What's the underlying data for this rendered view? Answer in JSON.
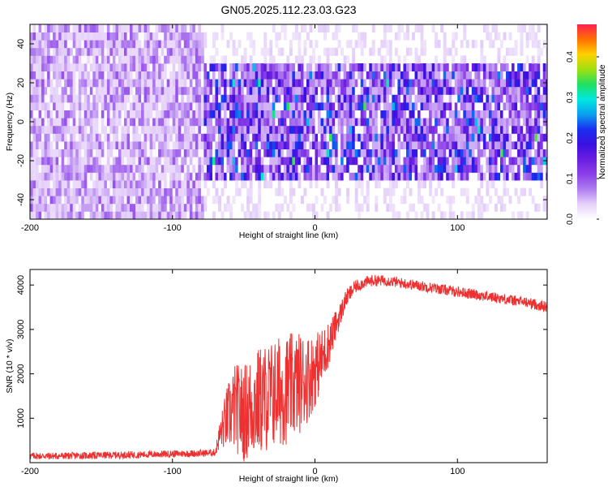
{
  "title": "GN05.2025.112.23.03.G23",
  "colors": {
    "snr_line": "#ee3030",
    "colormap": [
      "#ffffff",
      "#e6d2fa",
      "#b07cf0",
      "#8a3fe8",
      "#6a1ee0",
      "#3a10e0",
      "#1a30f0",
      "#0aa0f0",
      "#00e8e0",
      "#20e060",
      "#a0e010",
      "#ffd000",
      "#ff7000",
      "#ff1f4f"
    ]
  },
  "chart_data": [
    {
      "id": "spectrogram",
      "type": "heatmap",
      "xlabel": "Height of straight line (km)",
      "ylabel": "Frequency (Hz)",
      "xlim": [
        -200,
        163
      ],
      "ylim": [
        -50,
        50
      ],
      "xticks": [
        -200,
        -100,
        0,
        100
      ],
      "yticks": [
        -40,
        -20,
        0,
        20,
        40
      ],
      "colorbar": {
        "label": "Normalized spectral amplitude",
        "range": [
          0.0,
          0.48
        ],
        "ticks": [
          0.0,
          0.1,
          0.2,
          0.3,
          0.4
        ]
      },
      "regions": [
        {
          "x_range": [
            -200,
            -78
          ],
          "band_hz": [
            -50,
            50
          ],
          "amplitude": [
            0.03,
            0.1
          ]
        },
        {
          "x_range": [
            -78,
            163
          ],
          "band_hz": [
            -30,
            30
          ],
          "amplitude": [
            0.05,
            0.25
          ],
          "peak_amplitude": 0.35
        }
      ]
    },
    {
      "id": "snr",
      "type": "line",
      "xlabel": "Height of straight line (km)",
      "ylabel": "SNR (10 * v/v)",
      "xlim": [
        -200,
        163
      ],
      "ylim": [
        0,
        4350
      ],
      "xticks": [
        -200,
        -100,
        0,
        100
      ],
      "yticks": [
        1000,
        2000,
        3000,
        4000
      ],
      "series": [
        {
          "x": [
            -200,
            -180,
            -160,
            -140,
            -120,
            -100,
            -80,
            -70,
            -67,
            -62,
            -56,
            -50,
            -44,
            -38,
            -32,
            -26,
            -20,
            -14,
            -8,
            -2,
            4,
            10,
            16,
            22,
            28,
            34,
            40,
            50,
            60,
            70,
            80,
            90,
            100,
            110,
            120,
            130,
            140,
            150,
            163
          ],
          "y": [
            150,
            150,
            160,
            170,
            180,
            200,
            210,
            230,
            600,
            1000,
            1250,
            1100,
            1300,
            1400,
            1500,
            1600,
            1650,
            1750,
            1850,
            2000,
            2300,
            2700,
            3200,
            3700,
            3950,
            4050,
            4100,
            4100,
            4050,
            4000,
            3950,
            3900,
            3850,
            3800,
            3750,
            3700,
            3650,
            3600,
            3500
          ],
          "noise_amplitude": [
            80,
            80,
            80,
            80,
            80,
            80,
            80,
            80,
            300,
            700,
            1000,
            1100,
            1200,
            1250,
            1250,
            1250,
            1250,
            1200,
            1100,
            900,
            700,
            500,
            300,
            200,
            150,
            130,
            130,
            120,
            120,
            120,
            120,
            120,
            120,
            120,
            120,
            120,
            120,
            120,
            130
          ]
        }
      ]
    }
  ]
}
